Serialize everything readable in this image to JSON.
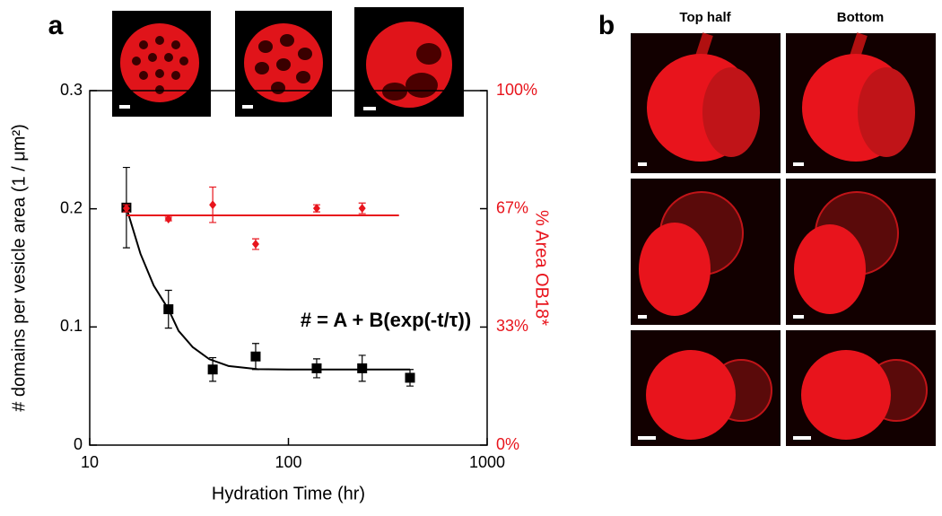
{
  "panels": [
    "a",
    "b"
  ],
  "chart_data": {
    "type": "scatter",
    "xlabel": "Hydration Time (hr)",
    "ylabel": "# domains per vesicle area (1 / μm²)",
    "y2label": "% Area OB18*",
    "annotation": "# = A + B(exp(-t/τ))",
    "xscale": "log",
    "xlim": [
      10,
      1000
    ],
    "xticks": [
      10,
      100,
      1000
    ],
    "ylim": [
      0,
      0.3
    ],
    "yticks": [
      0,
      0.1,
      0.2,
      0.3
    ],
    "y2lim": [
      0,
      100
    ],
    "y2ticks": [
      {
        "value": 0,
        "label": "0%"
      },
      {
        "value": 33.3,
        "label": "33%"
      },
      {
        "value": 66.7,
        "label": "67%"
      },
      {
        "value": 100,
        "label": "100%"
      }
    ],
    "y2color": "#e8141c",
    "series": [
      {
        "color": "#000000",
        "marker": "square",
        "x": [
          15.3,
          24.9,
          41.6,
          68.4,
          138.7,
          235,
          409
        ],
        "values": [
          0.201,
          0.115,
          0.064,
          0.075,
          0.065,
          0.065,
          0.057
        ],
        "errors": [
          0.034,
          0.016,
          0.01,
          0.011,
          0.008,
          0.011,
          0.007
        ]
      },
      {
        "color": "#e8141c",
        "marker": "diamond",
        "axis": "y2",
        "x": [
          15.3,
          24.9,
          41.6,
          68.4,
          138.7,
          235
        ],
        "values": [
          66.8,
          63.8,
          67.8,
          56.7,
          66.8,
          66.8
        ],
        "errors": [
          1.0,
          0.5,
          5.0,
          1.5,
          1.0,
          1.5
        ]
      }
    ],
    "fits": [
      {
        "color": "#000000",
        "x": [
          15.3,
          18,
          21,
          24.9,
          28,
          33,
          40,
          50,
          70,
          100,
          200,
          409
        ],
        "values": [
          0.201,
          0.162,
          0.135,
          0.115,
          0.0967,
          0.0829,
          0.0727,
          0.0669,
          0.0643,
          0.064,
          0.064,
          0.064
        ]
      },
      {
        "color": "#e8141c",
        "axis": "y2",
        "x": [
          15.3,
          360
        ],
        "values": [
          64.8,
          64.8
        ]
      }
    ]
  },
  "panel_b": {
    "columns": [
      "Top half",
      "Bottom"
    ]
  }
}
